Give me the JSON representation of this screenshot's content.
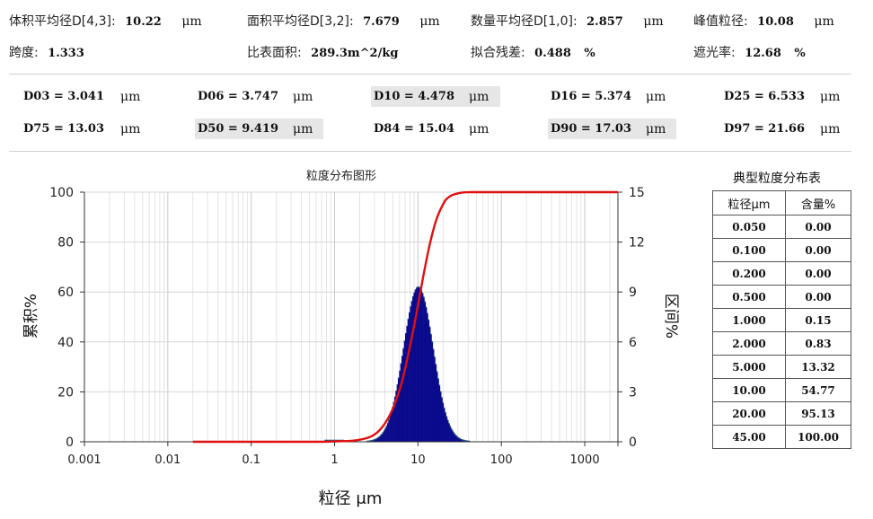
{
  "summary": {
    "row1": [
      {
        "label": "体积平均径D[4,3]:",
        "value": "10.22",
        "unit": "μm"
      },
      {
        "label": "面积平均径D[3,2]:",
        "value": "7.679",
        "unit": "μm"
      },
      {
        "label": "数量平均径D[1,0]:",
        "value": "2.857",
        "unit": "μm"
      },
      {
        "label": "峰值粒径:",
        "value": "10.08",
        "unit": "μm"
      }
    ],
    "row2": [
      {
        "label": "跨度:",
        "value": "1.333",
        "unit": ""
      },
      {
        "label": "比表面积:",
        "value": "289.3m^2/kg",
        "unit": ""
      },
      {
        "label": "拟合残差:",
        "value": "0.488",
        "unit": "%"
      },
      {
        "label": "遮光率:",
        "value": "12.68",
        "unit": "%"
      }
    ]
  },
  "percentiles": {
    "row1": [
      {
        "text": "D03 = 3.041",
        "unit": "μm",
        "highlight": false
      },
      {
        "text": "D06 = 3.747",
        "unit": "μm",
        "highlight": false
      },
      {
        "text": "D10 = 4.478",
        "unit": "μm",
        "highlight": true
      },
      {
        "text": "D16 = 5.374",
        "unit": "μm",
        "highlight": false
      },
      {
        "text": "D25 = 6.533",
        "unit": "μm",
        "highlight": false
      }
    ],
    "row2": [
      {
        "text": "D75 = 13.03",
        "unit": "μm",
        "highlight": false
      },
      {
        "text": "D50 = 9.419",
        "unit": "μm",
        "highlight": true
      },
      {
        "text": "D84 = 15.04",
        "unit": "μm",
        "highlight": false
      },
      {
        "text": "D90 = 17.03",
        "unit": "μm",
        "highlight": true
      },
      {
        "text": "D97 = 21.66",
        "unit": "μm",
        "highlight": false
      }
    ]
  },
  "chart_data": {
    "type": "area",
    "title": "粒度分布图形",
    "xlabel": "粒径 μm",
    "ylabel_left": "累积%",
    "ylabel_right": "区间%",
    "xscale": "log",
    "xlim": [
      0.001,
      2500
    ],
    "ylim_left": [
      0,
      100
    ],
    "ylim_right": [
      0,
      15
    ],
    "x_ticks": [
      "0.001",
      "0.01",
      "0.1",
      "1",
      "10",
      "100",
      "1000"
    ],
    "y_ticks_left": [
      "0",
      "20",
      "40",
      "60",
      "80",
      "100"
    ],
    "y_ticks_right": [
      "0",
      "3",
      "6",
      "9",
      "12",
      "15"
    ],
    "grid": true,
    "colors": {
      "distribution": "#0a0a8c",
      "distribution_edge": "#1f4e79",
      "cumulative": "#e01010"
    },
    "series": [
      {
        "kind": "histogram",
        "axis": "right",
        "median": 10.08,
        "log_sigma": 0.178,
        "peak": 9.3,
        "x_range": [
          0.6,
          45
        ]
      },
      {
        "kind": "cumulative",
        "axis": "left",
        "x": [
          0.02,
          0.7,
          1.0,
          2.0,
          3.041,
          3.747,
          4.478,
          5.0,
          5.374,
          6.533,
          9.419,
          10.0,
          13.03,
          15.04,
          17.03,
          20.0,
          21.66,
          30.0,
          45.0,
          2500
        ],
        "y": [
          0,
          0,
          0.15,
          0.83,
          3,
          6,
          10,
          13.32,
          16,
          25,
          50,
          54.77,
          75,
          84,
          90,
          95.13,
          97,
          99.5,
          100,
          100
        ]
      }
    ]
  },
  "table": {
    "caption": "典型粒度分布表",
    "headers": [
      "粒径μm",
      "含量%"
    ],
    "rows": [
      [
        "0.050",
        "0.00"
      ],
      [
        "0.100",
        "0.00"
      ],
      [
        "0.200",
        "0.00"
      ],
      [
        "0.500",
        "0.00"
      ],
      [
        "1.000",
        "0.15"
      ],
      [
        "2.000",
        "0.83"
      ],
      [
        "5.000",
        "13.32"
      ],
      [
        "10.00",
        "54.77"
      ],
      [
        "20.00",
        "95.13"
      ],
      [
        "45.00",
        "100.00"
      ]
    ]
  }
}
